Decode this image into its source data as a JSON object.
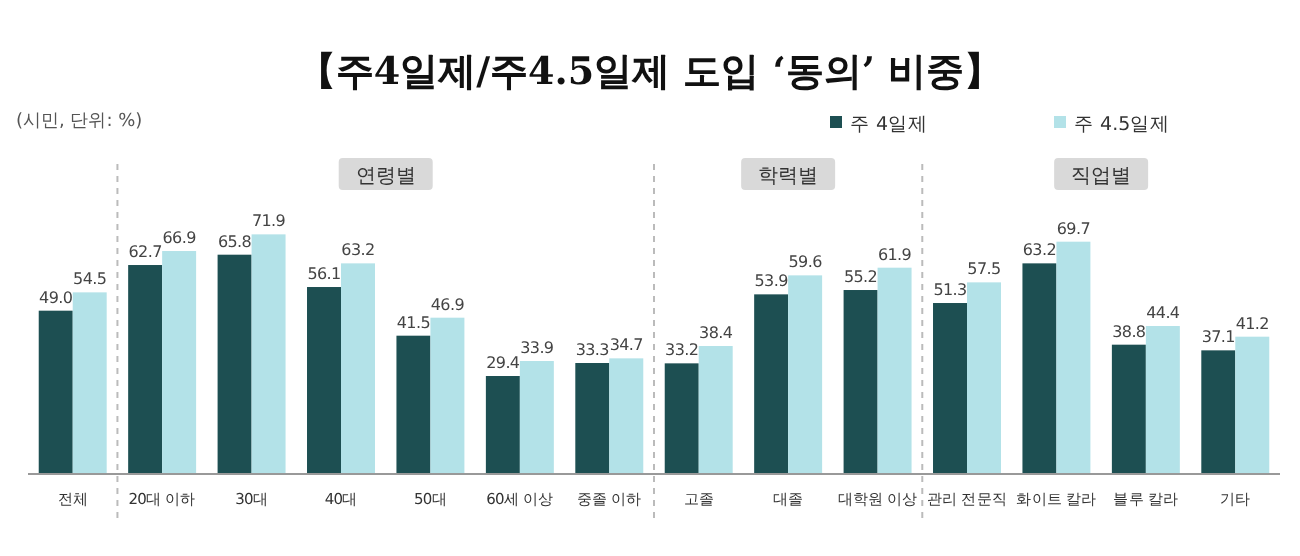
{
  "chart_data": {
    "type": "bar",
    "title": "【주4일제/주4.5일제 도입 ‘동의’ 비중】",
    "subtitle": "(시민, 단위: %)",
    "categories": [
      "전체",
      "20대 이하",
      "30대",
      "40대",
      "50대",
      "60세 이상",
      "중졸 이하",
      "고졸",
      "대졸",
      "대학원 이상",
      "관리 전문직",
      "화이트 칼라",
      "블루 칼라",
      "기타"
    ],
    "series": [
      {
        "name": "주 4일제",
        "color": "#1d4f52",
        "values": [
          49.0,
          62.7,
          65.8,
          56.1,
          41.5,
          29.4,
          33.3,
          33.2,
          53.9,
          55.2,
          51.3,
          63.2,
          38.8,
          37.1
        ],
        "value_labels": [
          "49.0",
          "62.7",
          "65.8",
          "56.1",
          "41.5",
          "29.4",
          "33.3",
          "33.2",
          "53.9",
          "55.2",
          "51.3",
          "63.2",
          "38.8",
          "37.1"
        ]
      },
      {
        "name": "주 4.5일제",
        "color": "#b3e2e8",
        "values": [
          54.5,
          66.9,
          71.9,
          63.2,
          46.9,
          33.9,
          34.7,
          38.4,
          59.6,
          61.9,
          57.5,
          69.7,
          44.4,
          41.2
        ],
        "value_labels": [
          "54.5",
          "66.9",
          "71.9",
          "63.2",
          "46.9",
          "33.9",
          "34.7",
          "38.4",
          "59.6",
          "61.9",
          "57.5",
          "69.7",
          "44.4",
          "41.2"
        ]
      }
    ],
    "annotations": [
      "연령별",
      "학력별",
      "직업별"
    ],
    "legend": "top right",
    "tick_labels": "x"
  }
}
